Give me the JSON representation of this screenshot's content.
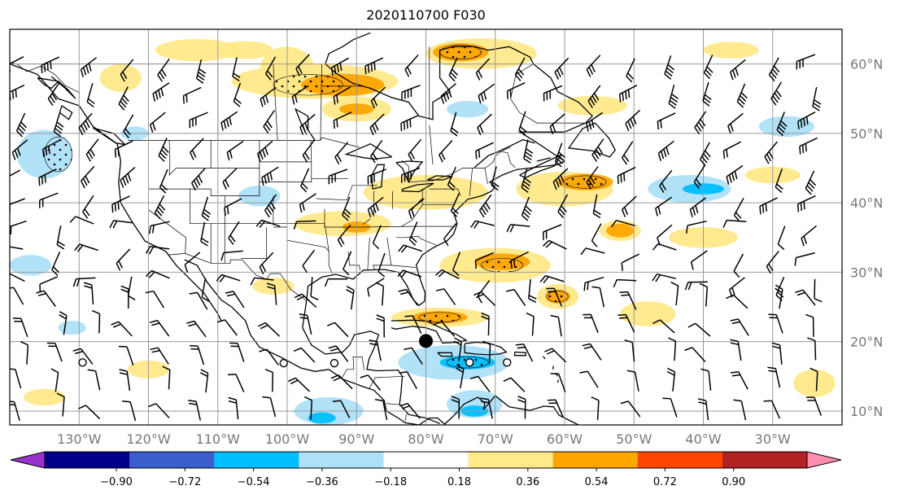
{
  "title": "2020110700 F030",
  "map": {
    "extent": {
      "lon_min": -140,
      "lon_max": -20,
      "lat_min": 8,
      "lat_max": 65
    },
    "meridians": [
      -130,
      -120,
      -110,
      -100,
      -90,
      -80,
      -70,
      -60,
      -50,
      -40,
      -30
    ],
    "parallels": [
      10,
      20,
      30,
      40,
      50,
      60
    ],
    "lon_labels": [
      "130°W",
      "120°W",
      "110°W",
      "100°W",
      "90°W",
      "80°W",
      "70°W",
      "60°W",
      "50°W",
      "40°W",
      "30°W"
    ],
    "lat_labels": [
      "10°N",
      "20°N",
      "30°N",
      "40°N",
      "50°N",
      "60°N"
    ],
    "gridline_color": "#999999",
    "marker": {
      "type": "filled-circle",
      "lon": -80,
      "lat": 20.1,
      "color": "#000000"
    },
    "open_circles": [
      {
        "lon": -129.5,
        "lat": 17.0
      },
      {
        "lon": -100.5,
        "lat": 16.9
      },
      {
        "lon": -93.2,
        "lat": 16.9
      },
      {
        "lon": -73.7,
        "lat": 17.0
      },
      {
        "lon": -68.3,
        "lat": 17.0
      }
    ]
  },
  "colorbar": {
    "colors": [
      "#9932cc",
      "#00008b",
      "#3a5fcd",
      "#00bfff",
      "#aee0f8",
      "#ffffff",
      "#ffe98a",
      "#ffa500",
      "#ff4500",
      "#b22222",
      "#ff8dae"
    ],
    "ticks": [
      "−0.90",
      "−0.72",
      "−0.54",
      "−0.36",
      "−0.18",
      "0.18",
      "0.36",
      "0.54",
      "0.72",
      "0.90"
    ]
  }
}
